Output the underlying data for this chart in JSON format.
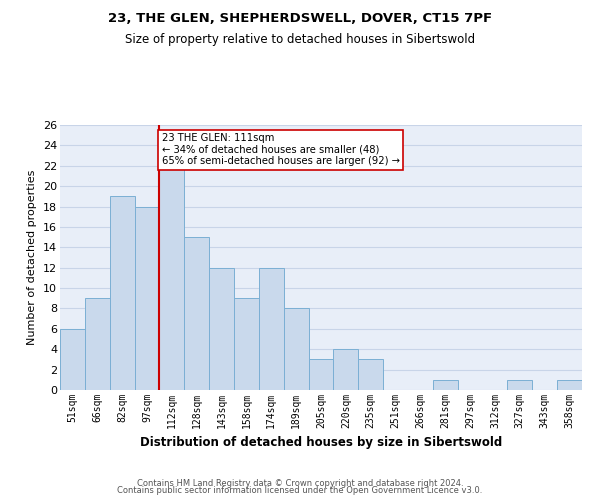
{
  "title1": "23, THE GLEN, SHEPHERDSWELL, DOVER, CT15 7PF",
  "title2": "Size of property relative to detached houses in Sibertswold",
  "xlabel": "Distribution of detached houses by size in Sibertswold",
  "ylabel": "Number of detached properties",
  "footer1": "Contains HM Land Registry data © Crown copyright and database right 2024.",
  "footer2": "Contains public sector information licensed under the Open Government Licence v3.0.",
  "categories": [
    "51sqm",
    "66sqm",
    "82sqm",
    "97sqm",
    "112sqm",
    "128sqm",
    "143sqm",
    "158sqm",
    "174sqm",
    "189sqm",
    "205sqm",
    "220sqm",
    "235sqm",
    "251sqm",
    "266sqm",
    "281sqm",
    "297sqm",
    "312sqm",
    "327sqm",
    "343sqm",
    "358sqm"
  ],
  "values": [
    6,
    9,
    19,
    18,
    22,
    15,
    12,
    9,
    12,
    8,
    3,
    4,
    3,
    0,
    0,
    1,
    0,
    0,
    1,
    0,
    1
  ],
  "bar_color": "#c9d9ec",
  "bar_edge_color": "#7bafd4",
  "highlight_index": 4,
  "highlight_line_color": "#cc0000",
  "annotation_text": "23 THE GLEN: 111sqm\n← 34% of detached houses are smaller (48)\n65% of semi-detached houses are larger (92) →",
  "annotation_box_color": "white",
  "annotation_box_edge": "#cc0000",
  "ylim": [
    0,
    26
  ],
  "yticks": [
    0,
    2,
    4,
    6,
    8,
    10,
    12,
    14,
    16,
    18,
    20,
    22,
    24,
    26
  ],
  "grid_color": "#c8d4e8",
  "bg_color": "#e8eef8"
}
